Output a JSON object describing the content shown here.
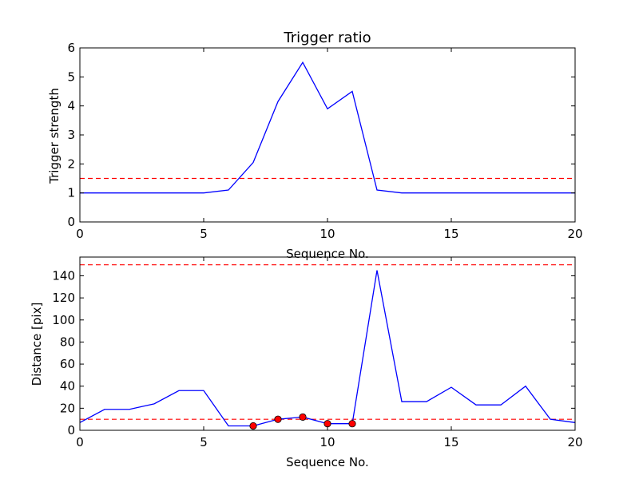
{
  "chart_data": [
    {
      "type": "line",
      "title": "Trigger ratio",
      "xlabel": "Sequence No.",
      "ylabel": "Trigger strength",
      "xlim": [
        0,
        20
      ],
      "ylim": [
        0,
        6
      ],
      "xticks": [
        0,
        5,
        10,
        15,
        20
      ],
      "yticks": [
        0,
        1,
        2,
        3,
        4,
        5,
        6
      ],
      "grid": false,
      "series": [
        {
          "style": "line",
          "color": "#0000ff",
          "x": [
            0,
            1,
            2,
            3,
            4,
            5,
            6,
            7,
            8,
            9,
            10,
            11,
            12,
            13,
            14,
            15,
            16,
            17,
            18,
            19,
            20
          ],
          "y": [
            1.0,
            1.0,
            1.0,
            1.0,
            1.0,
            1.0,
            1.1,
            2.05,
            4.15,
            5.5,
            3.9,
            4.5,
            1.1,
            1.0,
            1.0,
            1.0,
            1.0,
            1.0,
            1.0,
            1.0,
            1.0
          ]
        }
      ],
      "hlines": [
        {
          "y": 1.5,
          "color": "#ff0000",
          "style": "dashed"
        }
      ]
    },
    {
      "type": "line",
      "title": "",
      "xlabel": "Sequence No.",
      "ylabel": "Distance [pix]",
      "xlim": [
        0,
        20
      ],
      "ylim": [
        0,
        157
      ],
      "xticks": [
        0,
        5,
        10,
        15,
        20
      ],
      "yticks": [
        0,
        20,
        40,
        60,
        80,
        100,
        120,
        140
      ],
      "grid": false,
      "series": [
        {
          "style": "line",
          "color": "#0000ff",
          "x": [
            0,
            1,
            2,
            3,
            4,
            5,
            6,
            7,
            8,
            9,
            10,
            11,
            12,
            13,
            14,
            15,
            16,
            17,
            18,
            19,
            20
          ],
          "y": [
            7,
            19,
            19,
            24,
            36,
            36,
            4,
            4,
            10,
            12,
            6,
            6,
            145,
            26,
            26,
            39,
            23,
            23,
            40,
            10,
            7
          ]
        },
        {
          "style": "markers",
          "color": "#ff0000",
          "x": [
            7,
            8,
            9,
            10,
            11
          ],
          "y": [
            4,
            10,
            12,
            6,
            6
          ]
        }
      ],
      "hlines": [
        {
          "y": 150,
          "color": "#ff0000",
          "style": "dashed"
        },
        {
          "y": 10,
          "color": "#ff0000",
          "style": "dashed"
        }
      ]
    }
  ]
}
